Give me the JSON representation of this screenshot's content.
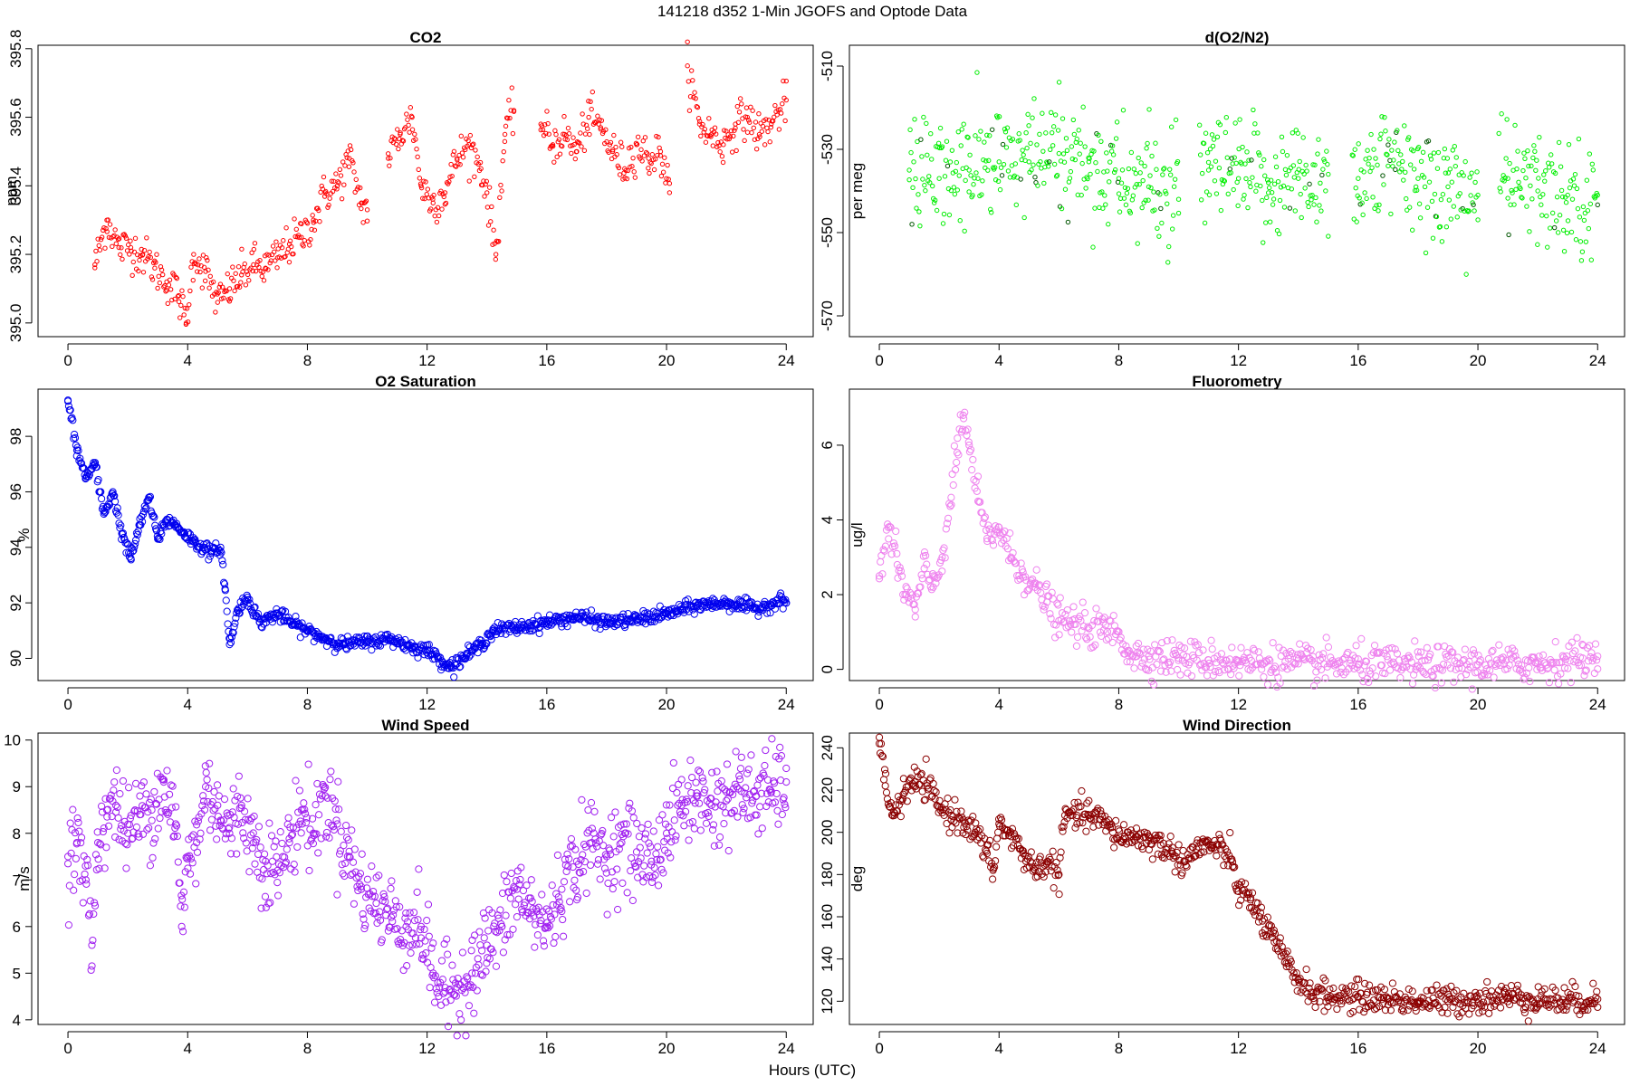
{
  "figure": {
    "title": "141218   d352   1-Min  JGOFS and Optode Data",
    "xlabel": "Hours (UTC)"
  },
  "chart_data": [
    {
      "type": "scatter",
      "title": "CO2",
      "ylabel": "ppm",
      "color": "#ff0000",
      "marker": "small-open-circle",
      "xlim": [
        -1,
        24.9
      ],
      "ylim": [
        394.96,
        395.81
      ],
      "xticks": [
        0,
        4,
        8,
        12,
        16,
        20,
        24
      ],
      "yticks": [
        395.0,
        395.2,
        395.4,
        395.6,
        395.8
      ],
      "ytick_labels": [
        "395.0",
        "395.2",
        "395.4",
        "395.6",
        "395.8"
      ],
      "y_tick_rotation": "vertical",
      "segments": [
        [
          0.9,
          10.0
        ],
        [
          10.7,
          14.9
        ],
        [
          15.8,
          20.1
        ],
        [
          20.7,
          24
        ]
      ],
      "series": [
        {
          "x": [
            0.9,
            1.3,
            1.7,
            2.1,
            2.5,
            2.9,
            3.3,
            3.7,
            3.95,
            4.2,
            4.6,
            5.0,
            5.4,
            5.8,
            6.2,
            6.6,
            7.0,
            7.4,
            7.8,
            8.2,
            8.6,
            9.0,
            9.4,
            9.8,
            10.0,
            10.7,
            11.1,
            11.5,
            11.8,
            12.2,
            12.6,
            13.0,
            13.4,
            13.8,
            14.0,
            14.3,
            14.6,
            14.9,
            15.8,
            16.2,
            16.6,
            17.0,
            17.4,
            17.8,
            18.2,
            18.6,
            19.0,
            19.4,
            19.8,
            20.1,
            20.7,
            21.1,
            21.5,
            21.9,
            22.3,
            22.7,
            23.1,
            23.5,
            24.0
          ],
          "y": [
            395.17,
            395.3,
            395.22,
            395.22,
            395.2,
            395.16,
            395.12,
            395.08,
            395.0,
            395.2,
            395.15,
            395.06,
            395.1,
            395.14,
            395.17,
            395.16,
            395.19,
            395.23,
            395.25,
            395.3,
            395.38,
            395.4,
            395.48,
            395.35,
            395.33,
            395.48,
            395.55,
            395.6,
            395.4,
            395.35,
            395.38,
            395.48,
            395.52,
            395.45,
            395.38,
            395.2,
            395.55,
            395.62,
            395.58,
            395.52,
            395.55,
            395.5,
            395.6,
            395.57,
            395.5,
            395.45,
            395.52,
            395.48,
            395.5,
            395.38,
            395.75,
            395.58,
            395.55,
            395.52,
            395.58,
            395.6,
            395.55,
            395.58,
            395.65
          ]
        }
      ]
    },
    {
      "type": "scatter",
      "title": "d(O2/N2)",
      "ylabel": "per meg",
      "color": "#00ee00",
      "marker": "small-open-circle",
      "xlim": [
        -1,
        24.9
      ],
      "ylim": [
        -575,
        -505
      ],
      "xticks": [
        0,
        4,
        8,
        12,
        16,
        20,
        24
      ],
      "yticks": [
        -570,
        -550,
        -530,
        -510
      ],
      "ytick_labels": [
        "-570",
        "-550",
        "-530",
        "-510"
      ],
      "y_tick_rotation": "vertical",
      "segments": [
        [
          1.0,
          10.0
        ],
        [
          10.7,
          15.0
        ],
        [
          15.8,
          20.0
        ],
        [
          20.7,
          24
        ]
      ],
      "series": [
        {
          "x": [
            1.0,
            2.0,
            3.0,
            4.0,
            5.0,
            6.0,
            7.0,
            8.0,
            9.0,
            10.0,
            11.0,
            12.0,
            13.0,
            14.0,
            15.0,
            16.0,
            17.0,
            18.0,
            19.0,
            20.0,
            21.0,
            22.0,
            23.0,
            24.0
          ],
          "y": [
            -535,
            -537,
            -535,
            -533,
            -533,
            -531,
            -533,
            -537,
            -539,
            -542,
            -535,
            -537,
            -538,
            -537,
            -536,
            -537,
            -534,
            -537,
            -539,
            -541,
            -537,
            -540,
            -541,
            -541
          ]
        }
      ]
    },
    {
      "type": "scatter",
      "title": "O2 Saturation",
      "ylabel": "%",
      "color": "#0000ee",
      "marker": "open-circle",
      "xlim": [
        -1,
        24.9
      ],
      "ylim": [
        89.2,
        99.7
      ],
      "xticks": [
        0,
        4,
        8,
        12,
        16,
        20,
        24
      ],
      "yticks": [
        90,
        92,
        94,
        96,
        98
      ],
      "ytick_labels": [
        "90",
        "92",
        "94",
        "96",
        "98"
      ],
      "y_tick_rotation": "vertical",
      "series": [
        {
          "x": [
            0.0,
            0.3,
            0.6,
            0.9,
            1.2,
            1.5,
            1.8,
            2.1,
            2.4,
            2.7,
            3.0,
            3.3,
            3.6,
            3.9,
            4.2,
            4.5,
            4.8,
            5.1,
            5.25,
            5.4,
            5.7,
            6.0,
            6.4,
            7.0,
            7.6,
            8.0,
            8.6,
            9.2,
            10.0,
            10.8,
            11.5,
            12.0,
            12.5,
            12.8,
            13.3,
            13.8,
            14.2,
            15.0,
            16.0,
            17.0,
            18.0,
            19.0,
            20.0,
            21.0,
            22.0,
            23.0,
            23.9,
            24.0
          ],
          "y": [
            99.3,
            97.5,
            96.5,
            97.0,
            95.2,
            96.0,
            94.5,
            93.6,
            94.8,
            95.8,
            94.3,
            95.0,
            94.8,
            94.5,
            94.2,
            94.0,
            93.8,
            94.0,
            92.5,
            90.5,
            91.8,
            92.2,
            91.3,
            91.6,
            91.2,
            91.0,
            90.7,
            90.5,
            90.6,
            90.7,
            90.4,
            90.3,
            89.9,
            89.7,
            90.1,
            90.5,
            91.0,
            91.1,
            91.3,
            91.5,
            91.3,
            91.4,
            91.6,
            91.9,
            92.0,
            91.8,
            92.1,
            92.0
          ]
        }
      ]
    },
    {
      "type": "scatter",
      "title": "Fluorometry",
      "ylabel": "ug/l",
      "color": "#ee82ee",
      "marker": "open-circle",
      "xlim": [
        -1,
        24.9
      ],
      "ylim": [
        -0.3,
        7.5
      ],
      "xticks": [
        0,
        4,
        8,
        12,
        16,
        20,
        24
      ],
      "yticks": [
        0,
        2,
        4,
        6
      ],
      "ytick_labels": [
        "0",
        "2",
        "4",
        "6"
      ],
      "y_tick_rotation": "vertical",
      "series": [
        {
          "x": [
            0.0,
            0.3,
            0.6,
            0.9,
            1.2,
            1.5,
            1.8,
            2.1,
            2.4,
            2.6,
            2.8,
            3.0,
            3.3,
            3.6,
            4.0,
            4.4,
            4.8,
            5.2,
            5.6,
            6.0,
            6.5,
            7.0,
            7.5,
            8.0,
            8.3,
            8.6,
            9.0,
            10.0,
            11.0,
            12.0,
            14.0,
            16.0,
            18.0,
            20.0,
            22.0,
            23.5,
            24.0
          ],
          "y": [
            2.5,
            3.8,
            2.8,
            2.0,
            1.6,
            2.7,
            2.2,
            3.0,
            4.6,
            5.8,
            6.8,
            6.0,
            4.5,
            3.5,
            3.8,
            3.0,
            2.6,
            2.2,
            1.8,
            1.3,
            1.2,
            1.1,
            1.05,
            1.0,
            0.5,
            0.35,
            0.35,
            0.3,
            0.25,
            0.2,
            0.15,
            0.12,
            0.1,
            0.12,
            0.15,
            0.3,
            0.35
          ]
        }
      ]
    },
    {
      "type": "scatter",
      "title": "Wind Speed",
      "ylabel": "m/s",
      "color": "#a020f0",
      "marker": "open-circle",
      "xlim": [
        -1,
        24.9
      ],
      "ylim": [
        3.9,
        10.15
      ],
      "xticks": [
        0,
        4,
        8,
        12,
        16,
        20,
        24
      ],
      "yticks": [
        4,
        5,
        6,
        7,
        8,
        9,
        10
      ],
      "ytick_labels": [
        "4",
        "5",
        "6",
        "7",
        "8",
        "9",
        "10"
      ],
      "y_tick_rotation": "horizontal",
      "series": [
        {
          "x": [
            0.0,
            0.3,
            0.6,
            0.8,
            1.0,
            1.3,
            1.6,
            2.0,
            2.4,
            2.8,
            3.2,
            3.6,
            3.8,
            4.0,
            4.3,
            4.6,
            5.0,
            5.4,
            5.8,
            6.2,
            6.6,
            7.0,
            7.4,
            7.8,
            8.2,
            8.6,
            9.0,
            9.4,
            9.8,
            10.3,
            10.8,
            11.3,
            11.8,
            12.2,
            12.6,
            13.0,
            13.5,
            14.0,
            14.5,
            15.0,
            15.5,
            16.0,
            16.5,
            17.0,
            17.5,
            18.0,
            18.5,
            19.0,
            19.5,
            20.0,
            20.5,
            21.0,
            21.5,
            22.0,
            22.5,
            23.0,
            23.5,
            24.0
          ],
          "y": [
            7.5,
            7.8,
            7.0,
            5.6,
            7.8,
            8.5,
            8.6,
            8.0,
            8.4,
            8.5,
            9.1,
            8.2,
            6.0,
            7.5,
            7.8,
            9.0,
            8.6,
            8.0,
            8.6,
            7.8,
            7.4,
            7.2,
            7.8,
            8.5,
            8.0,
            8.8,
            8.2,
            7.5,
            6.8,
            6.5,
            6.2,
            6.0,
            6.0,
            5.0,
            4.6,
            4.7,
            5.0,
            5.6,
            6.0,
            6.8,
            6.3,
            6.0,
            6.8,
            7.4,
            7.8,
            7.5,
            7.8,
            7.6,
            7.4,
            8.0,
            8.6,
            8.8,
            8.6,
            8.7,
            8.9,
            8.8,
            8.9,
            9.1
          ]
        }
      ]
    },
    {
      "type": "scatter",
      "title": "Wind Direction",
      "ylabel": "deg",
      "color": "#8b0000",
      "marker": "open-circle",
      "xlim": [
        -1,
        24.9
      ],
      "ylim": [
        109,
        247
      ],
      "xticks": [
        0,
        4,
        8,
        12,
        16,
        20,
        24
      ],
      "yticks": [
        120,
        140,
        160,
        180,
        200,
        220,
        240
      ],
      "ytick_labels": [
        "120",
        "140",
        "160",
        "180",
        "200",
        "220",
        "240"
      ],
      "y_tick_rotation": "vertical",
      "series": [
        {
          "x": [
            0.0,
            0.2,
            0.5,
            0.8,
            1.2,
            1.6,
            2.0,
            2.4,
            2.8,
            3.2,
            3.6,
            3.8,
            4.0,
            4.4,
            4.8,
            5.2,
            5.6,
            6.0,
            6.2,
            6.6,
            7.0,
            7.4,
            7.8,
            8.2,
            8.6,
            9.0,
            9.4,
            9.8,
            10.2,
            10.6,
            11.0,
            11.4,
            11.8,
            12.0,
            12.4,
            12.8,
            13.2,
            13.6,
            14.0,
            14.5,
            15.0,
            16.0,
            17.0,
            18.0,
            19.0,
            20.0,
            21.0,
            22.0,
            23.0,
            24.0
          ],
          "y": [
            242,
            222,
            208,
            218,
            224,
            222,
            212,
            208,
            206,
            200,
            190,
            182,
            204,
            198,
            190,
            182,
            186,
            180,
            208,
            208,
            208,
            206,
            200,
            198,
            198,
            196,
            194,
            190,
            186,
            192,
            194,
            192,
            186,
            172,
            168,
            158,
            148,
            138,
            130,
            124,
            122,
            122,
            121,
            120,
            120,
            121,
            122,
            121,
            120,
            121
          ]
        }
      ]
    }
  ]
}
